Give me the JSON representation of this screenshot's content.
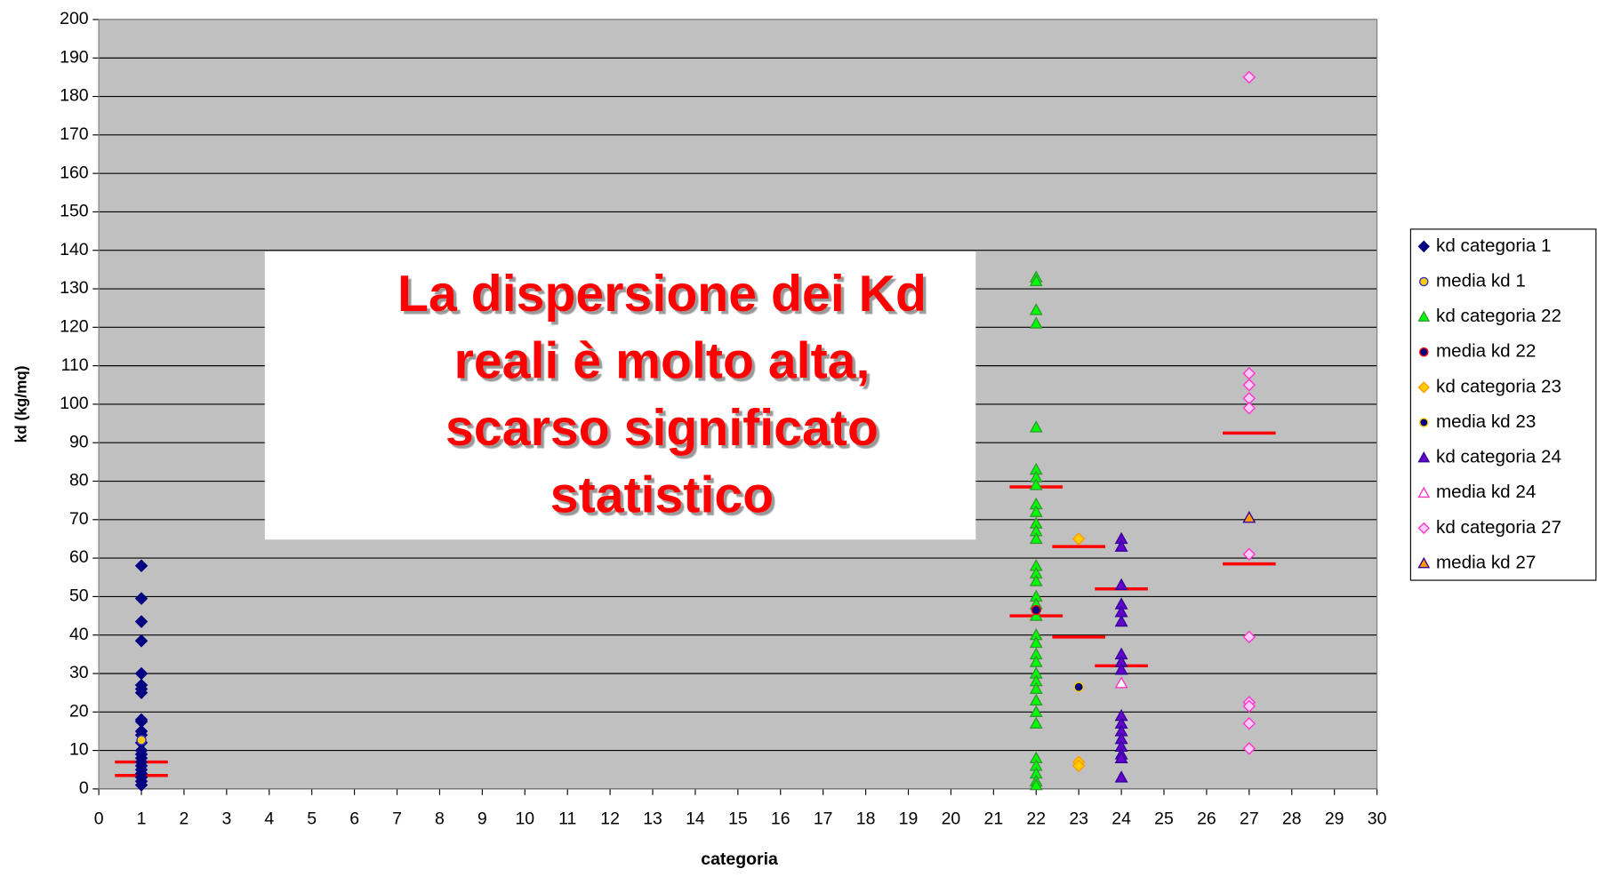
{
  "chart_data": {
    "type": "scatter",
    "xlabel": "categoria",
    "ylabel": "kd (kg/mq)",
    "xlim": [
      0,
      30
    ],
    "xticks": [
      0,
      1,
      2,
      3,
      4,
      5,
      6,
      7,
      8,
      9,
      10,
      11,
      12,
      13,
      14,
      15,
      16,
      17,
      18,
      19,
      20,
      21,
      22,
      23,
      24,
      25,
      26,
      27,
      28,
      29,
      30
    ],
    "ylim": [
      0,
      200
    ],
    "yticks": [
      0,
      10,
      20,
      30,
      40,
      50,
      60,
      70,
      80,
      90,
      100,
      110,
      120,
      130,
      140,
      150,
      160,
      170,
      180,
      190,
      200
    ],
    "grid": true,
    "background": "#c0c0c0",
    "legend": "right",
    "annotation": {
      "lines": [
        "La dispersione dei Kd",
        "reali è molto alta,",
        "scarso significato",
        "statistico"
      ],
      "color": "#ff0000"
    },
    "series": [
      {
        "name": "kd  categoria 1",
        "marker": "diamond",
        "color": "#000080",
        "edge": "#000080",
        "x": 1,
        "values": [
          58,
          49.5,
          43.5,
          38.5,
          30,
          27,
          26,
          25,
          18,
          17.5,
          15,
          14,
          12,
          10,
          9,
          8,
          7,
          6,
          5,
          4,
          3,
          2,
          1
        ]
      },
      {
        "name": "media kd 1",
        "marker": "circle",
        "color": "#ffcc00",
        "edge": "#3333cc",
        "x": 1,
        "values": [
          12.7
        ]
      },
      {
        "name": "kd  categoria 22",
        "marker": "triangle",
        "color": "#00ff00",
        "edge": "#339933",
        "x": 22,
        "values": [
          133,
          132,
          124.5,
          121,
          94,
          83,
          81,
          79,
          74,
          72,
          69,
          67,
          65,
          58,
          56,
          54,
          50,
          48,
          45,
          40,
          38,
          35,
          33,
          30,
          28,
          26,
          23,
          20,
          17,
          8,
          6,
          4,
          2,
          1
        ]
      },
      {
        "name": "media kd 22",
        "marker": "circle",
        "color": "#000080",
        "edge": "#ff0000",
        "x": 22,
        "values": [
          46.5
        ]
      },
      {
        "name": "kd categoria 23",
        "marker": "diamond",
        "color": "#ffcc00",
        "edge": "#ff9900",
        "x": 23,
        "values": [
          65,
          7,
          6
        ]
      },
      {
        "name": "media kd 23",
        "marker": "circle",
        "color": "#000080",
        "edge": "#ffcc00",
        "x": 23,
        "values": [
          26.5
        ]
      },
      {
        "name": "kd categoria 24",
        "marker": "triangle",
        "color": "#6600cc",
        "edge": "#330099",
        "x": 24,
        "values": [
          65,
          63,
          53,
          48,
          46,
          43.5,
          35,
          33,
          31,
          19,
          17,
          15,
          13,
          11,
          9,
          8,
          3
        ]
      },
      {
        "name": "media kd 24",
        "marker": "triangle",
        "color": "#ffffff",
        "edge": "#ff33cc",
        "x": 24,
        "values": [
          27.5
        ]
      },
      {
        "name": "kd categoria 27",
        "marker": "diamond",
        "color": "#ffccff",
        "edge": "#ff33cc",
        "x": 27,
        "values": [
          185,
          108,
          105,
          101.5,
          99,
          61,
          39.5,
          22.5,
          21.5,
          17,
          10.5
        ]
      },
      {
        "name": "media kd 27",
        "marker": "triangle",
        "color": "#ff9900",
        "edge": "#330099",
        "x": 27,
        "values": [
          70.5
        ]
      }
    ],
    "reference_lines": {
      "color": "#ff0000",
      "x": [
        1,
        1,
        22,
        22,
        23,
        23,
        24,
        24,
        27,
        27
      ],
      "values": [
        7,
        3.5,
        78.5,
        45,
        63,
        39.5,
        52,
        32,
        92.5,
        58.5
      ]
    }
  }
}
